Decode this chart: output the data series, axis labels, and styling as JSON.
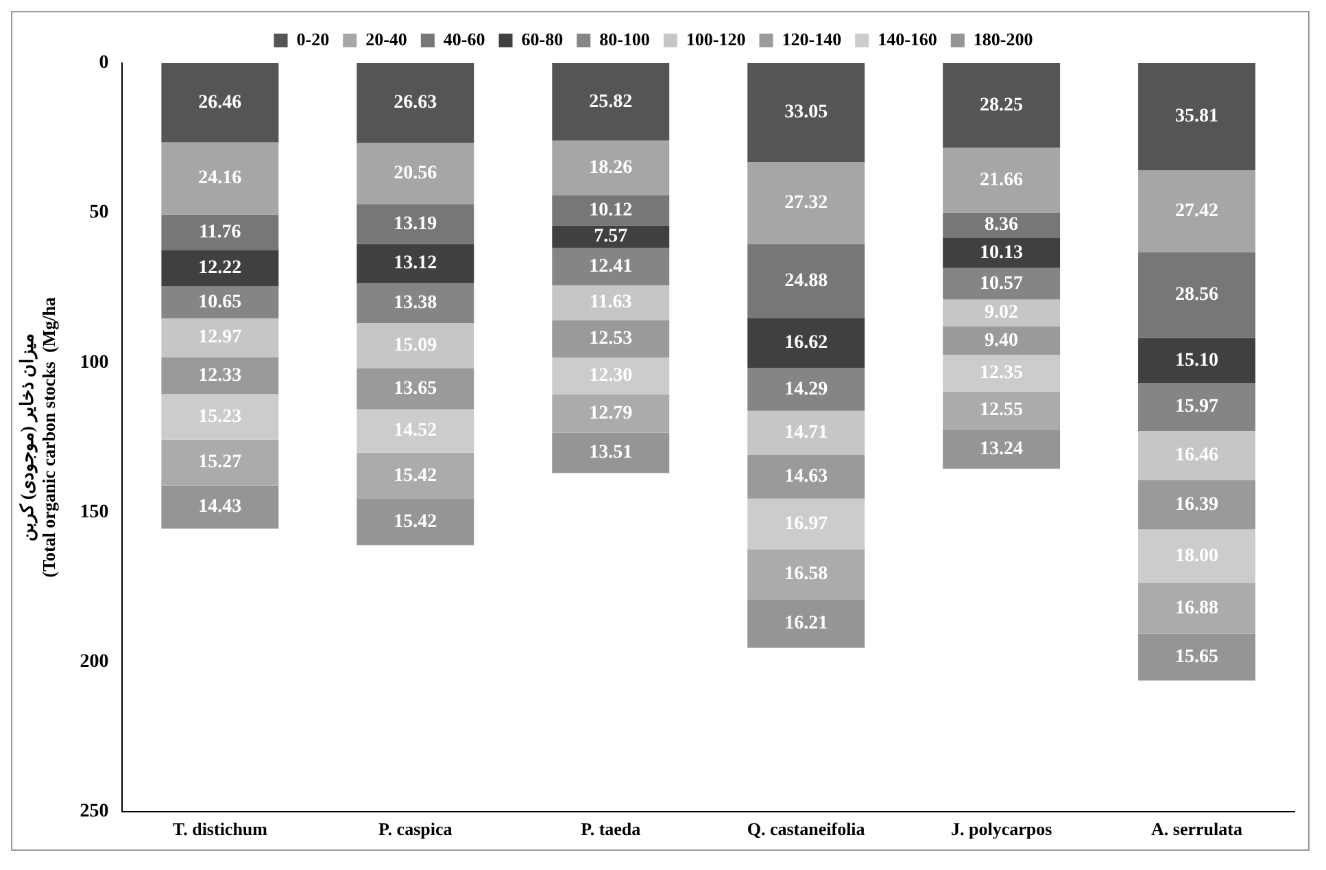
{
  "chart_data": {
    "type": "bar",
    "stacked": true,
    "ylabel": "میزان ذخایر (موجودی) کربن\n(Total organic carbon stocks  (Mg/ha",
    "categories": [
      "T. distichum",
      "P. caspica",
      "P. taeda",
      "Q. castaneifolia",
      "J. polycarpos",
      "A. serrulata"
    ],
    "series": [
      {
        "name": "0-20",
        "color": "#555555",
        "values": [
          26.46,
          26.63,
          25.82,
          33.05,
          28.25,
          35.81
        ],
        "value_labels": [
          "26.46",
          "26.63",
          "25.82",
          "33.05",
          "28.25",
          "35.81"
        ]
      },
      {
        "name": "20-40",
        "color": "#a6a6a6",
        "values": [
          24.16,
          20.56,
          18.26,
          27.32,
          21.66,
          27.42
        ],
        "value_labels": [
          "24.16",
          "20.56",
          "18.26",
          "27.32",
          "21.66",
          "27.42"
        ]
      },
      {
        "name": "40-60",
        "color": "#777777",
        "values": [
          11.76,
          13.19,
          10.12,
          24.88,
          8.36,
          28.56
        ],
        "value_labels": [
          "11.76",
          "13.19",
          "10.12",
          "24.88",
          "8.36",
          "28.56"
        ]
      },
      {
        "name": "60-80",
        "color": "#404040",
        "values": [
          12.22,
          13.12,
          7.57,
          16.62,
          10.13,
          15.1
        ],
        "value_labels": [
          "12.22",
          "13.12",
          "7.57",
          "16.62",
          "10.13",
          "15.10"
        ]
      },
      {
        "name": "80-100",
        "color": "#858585",
        "values": [
          10.65,
          13.38,
          12.41,
          14.29,
          10.57,
          15.97
        ],
        "value_labels": [
          "10.65",
          "13.38",
          "12.41",
          "14.29",
          "10.57",
          "15.97"
        ]
      },
      {
        "name": "100-120",
        "color": "#c6c6c6",
        "values": [
          12.97,
          15.09,
          11.63,
          14.71,
          9.02,
          16.46
        ],
        "value_labels": [
          "12.97",
          "15.09",
          "11.63",
          "14.71",
          "9.02",
          "16.46"
        ]
      },
      {
        "name": "120-140",
        "color": "#9a9a9a",
        "values": [
          12.33,
          13.65,
          12.53,
          14.63,
          9.4,
          16.39
        ],
        "value_labels": [
          "12.33",
          "13.65",
          "12.53",
          "14.63",
          "9.40",
          "16.39"
        ]
      },
      {
        "name": "140-160",
        "color": "#cccccc",
        "values": [
          15.23,
          14.52,
          12.3,
          16.97,
          12.35,
          18.0
        ],
        "value_labels": [
          "15.23",
          "14.52",
          "12.30",
          "16.97",
          "12.35",
          "18.00"
        ]
      },
      {
        "color": "#ababab",
        "values": [
          15.27,
          15.42,
          12.79,
          16.58,
          12.55,
          16.88
        ],
        "value_labels": [
          "15.27",
          "15.42",
          "12.79",
          "16.58",
          "12.55",
          "16.88"
        ]
      },
      {
        "name": "180-200",
        "color": "#959595",
        "values": [
          14.43,
          15.42,
          13.51,
          16.21,
          13.24,
          15.65
        ],
        "value_labels": [
          "14.43",
          "15.42",
          "13.51",
          "16.21",
          "13.24",
          "15.65"
        ]
      }
    ],
    "ylim": [
      250,
      0
    ],
    "yticks": [
      0,
      50,
      100,
      150,
      200,
      250
    ],
    "grid": false,
    "legend": "top"
  }
}
